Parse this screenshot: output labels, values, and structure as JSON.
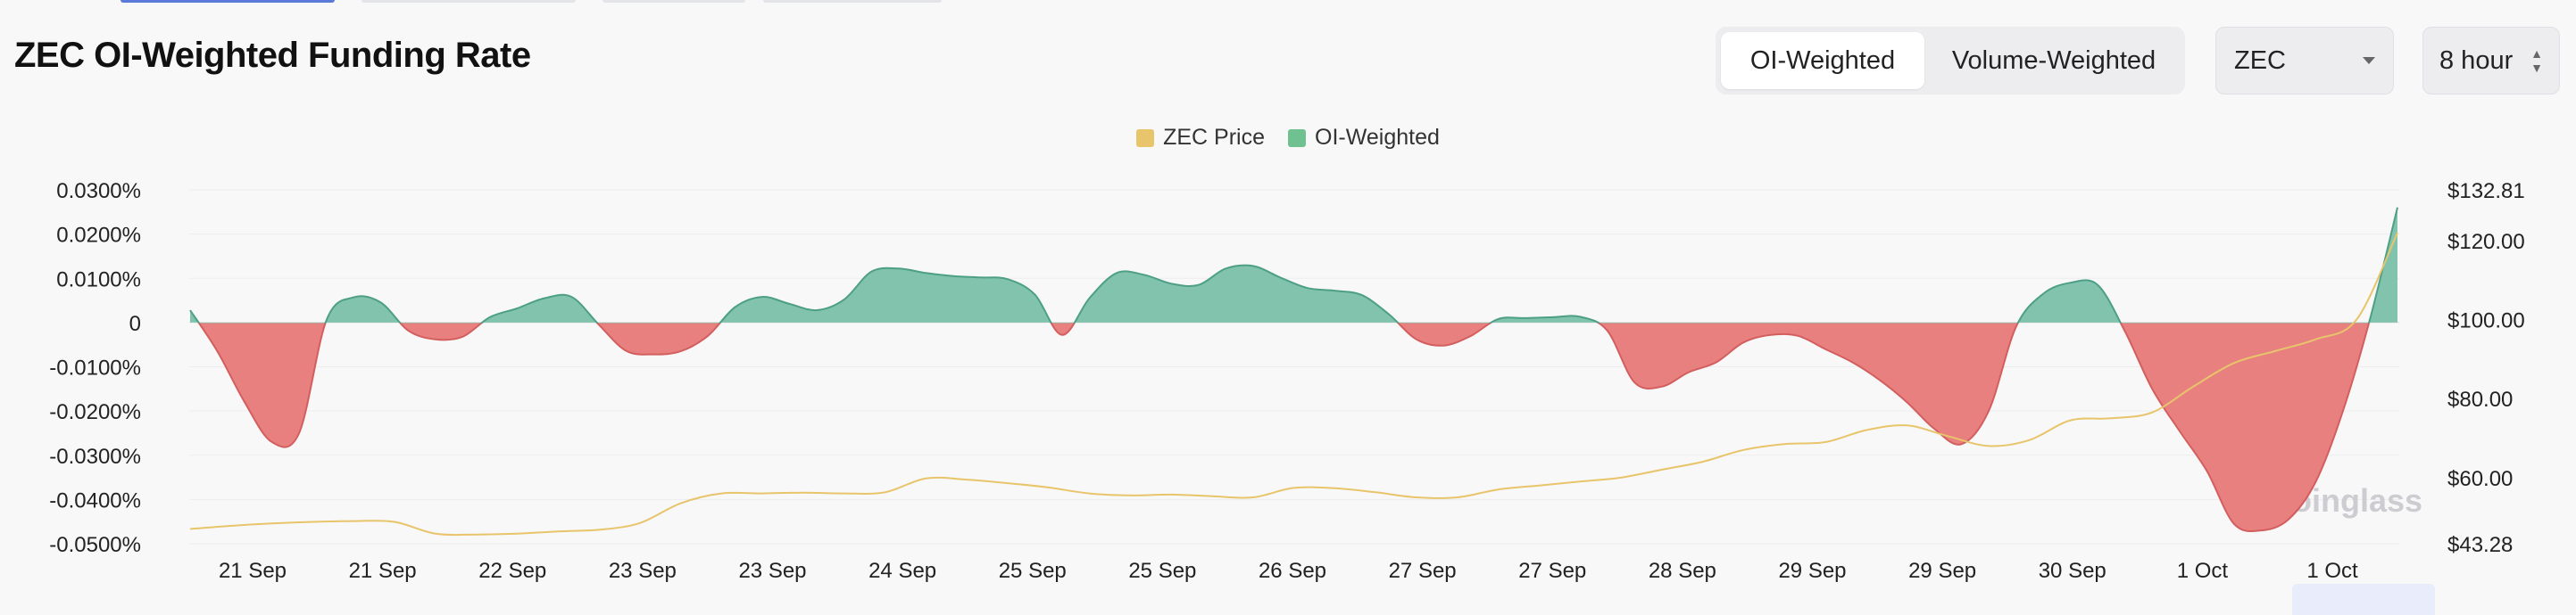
{
  "page": {
    "title": "ZEC OI-Weighted Funding Rate"
  },
  "controls": {
    "weighting": {
      "options": [
        "OI-Weighted",
        "Volume-Weighted"
      ],
      "selected": "OI-Weighted"
    },
    "coin_select": {
      "value": "ZEC",
      "icon": "chevron-down-icon"
    },
    "interval_select": {
      "value": "8 hour",
      "icon": "updown-chevron-icon"
    }
  },
  "watermark": {
    "text": "coinglass"
  },
  "colors": {
    "positive": "#82c3ad",
    "negative": "#e98080",
    "price_line": "#e8c46a",
    "legend_price": "#e8c46a",
    "legend_oi": "#6fc28f"
  },
  "chart_data": {
    "type": "area",
    "legend": [
      "ZEC Price",
      "OI-Weighted"
    ],
    "legend_position": "top-center",
    "grid": "horizontal",
    "x_tick_labels": [
      "21 Sep",
      "21 Sep",
      "22 Sep",
      "23 Sep",
      "23 Sep",
      "24 Sep",
      "25 Sep",
      "25 Sep",
      "26 Sep",
      "27 Sep",
      "27 Sep",
      "28 Sep",
      "29 Sep",
      "29 Sep",
      "30 Sep",
      "1 Oct",
      "1 Oct"
    ],
    "y_left": {
      "unit": "%",
      "ylim": [
        -0.05,
        0.03
      ],
      "tick_labels": [
        "0.0300%",
        "0.0200%",
        "0.0100%",
        "0",
        "-0.0100%",
        "-0.0200%",
        "-0.0300%",
        "-0.0400%",
        "-0.0500%"
      ]
    },
    "y_right": {
      "unit": "USD",
      "ylim": [
        43.28,
        132.81
      ],
      "tick_labels": [
        "$132.81",
        "$120.00",
        "$100.00",
        "$80.00",
        "$60.00",
        "$43.28"
      ]
    },
    "series": [
      {
        "name": "OI-Weighted",
        "axis": "left",
        "values": [
          0.0028,
          -0.0065,
          -0.018,
          -0.027,
          -0.025,
          0.0005,
          0.0057,
          0.0045,
          -0.0018,
          -0.0038,
          -0.0032,
          0.0012,
          0.0032,
          0.0055,
          0.0058,
          -0.0005,
          -0.0064,
          -0.0072,
          -0.0065,
          -0.003,
          0.0035,
          0.0058,
          0.0042,
          0.0028,
          0.0052,
          0.0115,
          0.0122,
          0.0112,
          0.0105,
          0.0102,
          0.0098,
          0.0063,
          -0.0028,
          0.0055,
          0.0112,
          0.0108,
          0.0088,
          0.0085,
          0.0122,
          0.0128,
          0.0102,
          0.0078,
          0.0072,
          0.0062,
          0.0018,
          -0.0038,
          -0.0052,
          -0.003,
          0.0008,
          0.001,
          0.0012,
          0.0013,
          -0.0018,
          -0.0135,
          -0.0145,
          -0.0112,
          -0.009,
          -0.0045,
          -0.0028,
          -0.003,
          -0.006,
          -0.009,
          -0.013,
          -0.018,
          -0.024,
          -0.0275,
          -0.02,
          -0.001,
          0.0065,
          0.009,
          0.0085,
          -0.002,
          -0.015,
          -0.0245,
          -0.0335,
          -0.0455,
          -0.047,
          -0.0445,
          -0.036,
          -0.02,
          0.001,
          0.026
        ]
      },
      {
        "name": "ZEC Price",
        "axis": "right",
        "values": [
          47.0,
          47.8,
          48.4,
          48.8,
          49.0,
          48.8,
          45.8,
          45.6,
          45.8,
          46.4,
          46.8,
          48.5,
          53.5,
          56.0,
          56.0,
          56.2,
          56.0,
          56.3,
          59.8,
          59.5,
          58.6,
          57.5,
          56.0,
          55.5,
          55.7,
          55.3,
          55.0,
          57.4,
          57.3,
          56.3,
          55.0,
          55.0,
          57.0,
          58.0,
          59.0,
          60.0,
          62.0,
          64.0,
          67.0,
          68.5,
          69.0,
          72.0,
          73.2,
          70.5,
          68.0,
          69.5,
          74.5,
          75.0,
          76.5,
          83.0,
          89.0,
          92.0,
          95.0,
          100.0,
          122.0
        ]
      }
    ]
  }
}
